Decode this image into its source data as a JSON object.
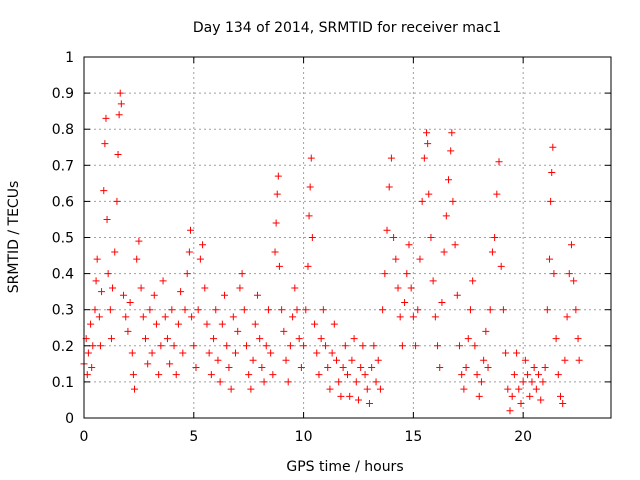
{
  "chart_data": {
    "type": "scatter",
    "title": "Day 134 of 2014, SRMTID for receiver mac1",
    "xlabel": "GPS time / hours",
    "ylabel": "SRMTID / TECUs",
    "xlim": [
      0,
      24
    ],
    "ylim": [
      0,
      1
    ],
    "xticks": [
      0,
      5,
      10,
      15,
      20
    ],
    "yticks": [
      0,
      0.1,
      0.2,
      0.3,
      0.4,
      0.5,
      0.6,
      0.7,
      0.8,
      0.9,
      1
    ],
    "grid": true,
    "marker": "plus",
    "color": "#ff0000",
    "series": [
      {
        "name": "SRMTID",
        "points": [
          [
            0.0,
            0.15
          ],
          [
            0.1,
            0.22
          ],
          [
            0.15,
            0.12
          ],
          [
            0.2,
            0.18
          ],
          [
            0.3,
            0.26
          ],
          [
            0.35,
            0.14
          ],
          [
            0.4,
            0.2
          ],
          [
            0.5,
            0.3
          ],
          [
            0.55,
            0.38
          ],
          [
            0.6,
            0.44
          ],
          [
            0.7,
            0.28
          ],
          [
            0.75,
            0.2
          ],
          [
            0.8,
            0.35
          ],
          [
            0.9,
            0.63
          ],
          [
            0.95,
            0.76
          ],
          [
            1.0,
            0.83
          ],
          [
            1.05,
            0.55
          ],
          [
            1.1,
            0.4
          ],
          [
            1.2,
            0.3
          ],
          [
            1.25,
            0.22
          ],
          [
            1.3,
            0.36
          ],
          [
            1.4,
            0.46
          ],
          [
            1.5,
            0.6
          ],
          [
            1.55,
            0.73
          ],
          [
            1.6,
            0.84
          ],
          [
            1.65,
            0.9
          ],
          [
            1.7,
            0.87
          ],
          [
            1.8,
            0.34
          ],
          [
            1.9,
            0.28
          ],
          [
            2.0,
            0.24
          ],
          [
            2.1,
            0.32
          ],
          [
            2.2,
            0.18
          ],
          [
            2.25,
            0.12
          ],
          [
            2.3,
            0.08
          ],
          [
            2.4,
            0.44
          ],
          [
            2.5,
            0.49
          ],
          [
            2.6,
            0.36
          ],
          [
            2.7,
            0.28
          ],
          [
            2.8,
            0.22
          ],
          [
            2.9,
            0.15
          ],
          [
            3.0,
            0.3
          ],
          [
            3.1,
            0.18
          ],
          [
            3.2,
            0.34
          ],
          [
            3.3,
            0.26
          ],
          [
            3.4,
            0.12
          ],
          [
            3.5,
            0.2
          ],
          [
            3.6,
            0.38
          ],
          [
            3.7,
            0.28
          ],
          [
            3.8,
            0.22
          ],
          [
            3.9,
            0.15
          ],
          [
            4.0,
            0.3
          ],
          [
            4.1,
            0.2
          ],
          [
            4.2,
            0.12
          ],
          [
            4.3,
            0.26
          ],
          [
            4.4,
            0.35
          ],
          [
            4.5,
            0.18
          ],
          [
            4.6,
            0.3
          ],
          [
            4.7,
            0.4
          ],
          [
            4.8,
            0.46
          ],
          [
            4.85,
            0.52
          ],
          [
            4.9,
            0.28
          ],
          [
            5.0,
            0.2
          ],
          [
            5.1,
            0.14
          ],
          [
            5.2,
            0.3
          ],
          [
            5.3,
            0.44
          ],
          [
            5.4,
            0.48
          ],
          [
            5.5,
            0.36
          ],
          [
            5.6,
            0.26
          ],
          [
            5.7,
            0.18
          ],
          [
            5.8,
            0.12
          ],
          [
            5.9,
            0.22
          ],
          [
            6.0,
            0.3
          ],
          [
            6.1,
            0.16
          ],
          [
            6.2,
            0.1
          ],
          [
            6.3,
            0.26
          ],
          [
            6.4,
            0.34
          ],
          [
            6.5,
            0.2
          ],
          [
            6.6,
            0.14
          ],
          [
            6.7,
            0.08
          ],
          [
            6.8,
            0.28
          ],
          [
            6.9,
            0.18
          ],
          [
            7.0,
            0.24
          ],
          [
            7.1,
            0.36
          ],
          [
            7.2,
            0.4
          ],
          [
            7.3,
            0.3
          ],
          [
            7.4,
            0.2
          ],
          [
            7.5,
            0.12
          ],
          [
            7.6,
            0.08
          ],
          [
            7.7,
            0.16
          ],
          [
            7.8,
            0.26
          ],
          [
            7.9,
            0.34
          ],
          [
            8.0,
            0.22
          ],
          [
            8.1,
            0.14
          ],
          [
            8.2,
            0.1
          ],
          [
            8.3,
            0.2
          ],
          [
            8.4,
            0.3
          ],
          [
            8.5,
            0.18
          ],
          [
            8.6,
            0.12
          ],
          [
            8.7,
            0.46
          ],
          [
            8.75,
            0.54
          ],
          [
            8.8,
            0.62
          ],
          [
            8.85,
            0.67
          ],
          [
            8.9,
            0.42
          ],
          [
            9.0,
            0.3
          ],
          [
            9.1,
            0.24
          ],
          [
            9.2,
            0.16
          ],
          [
            9.3,
            0.1
          ],
          [
            9.4,
            0.2
          ],
          [
            9.5,
            0.28
          ],
          [
            9.6,
            0.36
          ],
          [
            9.7,
            0.3
          ],
          [
            9.8,
            0.22
          ],
          [
            9.9,
            0.14
          ],
          [
            10.0,
            0.2
          ],
          [
            10.1,
            0.3
          ],
          [
            10.2,
            0.42
          ],
          [
            10.25,
            0.56
          ],
          [
            10.3,
            0.64
          ],
          [
            10.35,
            0.72
          ],
          [
            10.4,
            0.5
          ],
          [
            10.5,
            0.26
          ],
          [
            10.6,
            0.18
          ],
          [
            10.7,
            0.12
          ],
          [
            10.8,
            0.22
          ],
          [
            10.9,
            0.3
          ],
          [
            11.0,
            0.2
          ],
          [
            11.1,
            0.14
          ],
          [
            11.2,
            0.08
          ],
          [
            11.3,
            0.18
          ],
          [
            11.4,
            0.26
          ],
          [
            11.5,
            0.16
          ],
          [
            11.6,
            0.1
          ],
          [
            11.7,
            0.06
          ],
          [
            11.8,
            0.14
          ],
          [
            11.9,
            0.2
          ],
          [
            12.0,
            0.12
          ],
          [
            12.1,
            0.06
          ],
          [
            12.2,
            0.16
          ],
          [
            12.3,
            0.22
          ],
          [
            12.4,
            0.1
          ],
          [
            12.5,
            0.05
          ],
          [
            12.6,
            0.14
          ],
          [
            12.7,
            0.2
          ],
          [
            12.8,
            0.12
          ],
          [
            12.9,
            0.08
          ],
          [
            13.0,
            0.04
          ],
          [
            13.1,
            0.14
          ],
          [
            13.2,
            0.2
          ],
          [
            13.3,
            0.1
          ],
          [
            13.4,
            0.16
          ],
          [
            13.5,
            0.08
          ],
          [
            13.6,
            0.3
          ],
          [
            13.7,
            0.4
          ],
          [
            13.8,
            0.52
          ],
          [
            13.9,
            0.64
          ],
          [
            14.0,
            0.72
          ],
          [
            14.1,
            0.5
          ],
          [
            14.2,
            0.44
          ],
          [
            14.3,
            0.36
          ],
          [
            14.4,
            0.28
          ],
          [
            14.5,
            0.2
          ],
          [
            14.6,
            0.32
          ],
          [
            14.7,
            0.4
          ],
          [
            14.8,
            0.48
          ],
          [
            14.9,
            0.36
          ],
          [
            15.0,
            0.28
          ],
          [
            15.1,
            0.2
          ],
          [
            15.2,
            0.3
          ],
          [
            15.3,
            0.44
          ],
          [
            15.4,
            0.6
          ],
          [
            15.5,
            0.72
          ],
          [
            15.6,
            0.79
          ],
          [
            15.65,
            0.76
          ],
          [
            15.7,
            0.62
          ],
          [
            15.8,
            0.5
          ],
          [
            15.9,
            0.38
          ],
          [
            16.0,
            0.28
          ],
          [
            16.1,
            0.2
          ],
          [
            16.2,
            0.14
          ],
          [
            16.3,
            0.32
          ],
          [
            16.4,
            0.46
          ],
          [
            16.5,
            0.56
          ],
          [
            16.6,
            0.66
          ],
          [
            16.7,
            0.74
          ],
          [
            16.75,
            0.79
          ],
          [
            16.8,
            0.6
          ],
          [
            16.9,
            0.48
          ],
          [
            17.0,
            0.34
          ],
          [
            17.1,
            0.2
          ],
          [
            17.2,
            0.12
          ],
          [
            17.3,
            0.08
          ],
          [
            17.4,
            0.14
          ],
          [
            17.5,
            0.22
          ],
          [
            17.6,
            0.3
          ],
          [
            17.7,
            0.38
          ],
          [
            17.8,
            0.2
          ],
          [
            17.9,
            0.12
          ],
          [
            18.0,
            0.06
          ],
          [
            18.1,
            0.1
          ],
          [
            18.2,
            0.16
          ],
          [
            18.3,
            0.24
          ],
          [
            18.4,
            0.14
          ],
          [
            18.5,
            0.3
          ],
          [
            18.6,
            0.46
          ],
          [
            18.7,
            0.5
          ],
          [
            18.8,
            0.62
          ],
          [
            18.9,
            0.71
          ],
          [
            19.0,
            0.42
          ],
          [
            19.1,
            0.3
          ],
          [
            19.2,
            0.18
          ],
          [
            19.3,
            0.08
          ],
          [
            19.4,
            0.02
          ],
          [
            19.5,
            0.06
          ],
          [
            19.6,
            0.12
          ],
          [
            19.7,
            0.18
          ],
          [
            19.8,
            0.08
          ],
          [
            19.9,
            0.04
          ],
          [
            20.0,
            0.1
          ],
          [
            20.1,
            0.16
          ],
          [
            20.2,
            0.12
          ],
          [
            20.3,
            0.06
          ],
          [
            20.4,
            0.1
          ],
          [
            20.5,
            0.14
          ],
          [
            20.6,
            0.08
          ],
          [
            20.7,
            0.12
          ],
          [
            20.8,
            0.05
          ],
          [
            20.9,
            0.1
          ],
          [
            21.0,
            0.14
          ],
          [
            21.1,
            0.3
          ],
          [
            21.2,
            0.44
          ],
          [
            21.25,
            0.6
          ],
          [
            21.3,
            0.68
          ],
          [
            21.35,
            0.75
          ],
          [
            21.4,
            0.4
          ],
          [
            21.5,
            0.22
          ],
          [
            21.6,
            0.12
          ],
          [
            21.7,
            0.06
          ],
          [
            21.8,
            0.04
          ],
          [
            21.9,
            0.16
          ],
          [
            22.0,
            0.28
          ],
          [
            22.1,
            0.4
          ],
          [
            22.2,
            0.48
          ],
          [
            22.3,
            0.38
          ],
          [
            22.4,
            0.3
          ],
          [
            22.5,
            0.22
          ],
          [
            22.55,
            0.16
          ]
        ]
      }
    ]
  }
}
